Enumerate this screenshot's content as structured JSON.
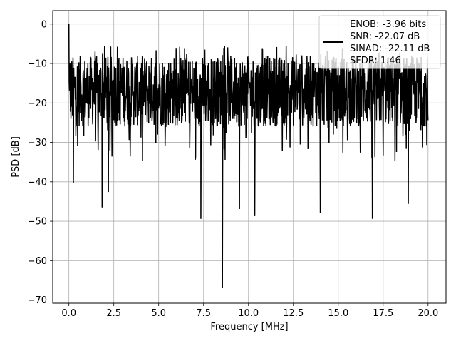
{
  "chart_data": {
    "type": "line",
    "title": "",
    "xlabel": "Frequency [MHz]",
    "ylabel": "PSD [dB]",
    "xlim": [
      -0.9,
      21.0
    ],
    "ylim": [
      -70.8,
      3.4
    ],
    "xticks": [
      0.0,
      2.5,
      5.0,
      7.5,
      10.0,
      12.5,
      15.0,
      17.5,
      20.0
    ],
    "xtick_labels": [
      "0.0",
      "2.5",
      "5.0",
      "7.5",
      "10.0",
      "12.5",
      "15.0",
      "17.5",
      "20.0"
    ],
    "yticks": [
      0,
      -10,
      -20,
      -30,
      -40,
      -50,
      -60,
      -70
    ],
    "ytick_labels": [
      "0",
      "−10",
      "−20",
      "−30",
      "−40",
      "−50",
      "−60",
      "−70"
    ],
    "grid": true,
    "legend_position": "top-right",
    "legend_lines": [
      "ENOB: -3.96 bits",
      "SNR: -22.07 dB",
      "SINAD: -22.11 dB",
      "SFDR: 1.46"
    ],
    "series": [
      {
        "color": "#000000",
        "trace": {
          "x_range": [
            0.0,
            20.0
          ],
          "typical_band": [
            -26,
            -8
          ],
          "start_peak": 0.0,
          "notable_minima": [
            {
              "x": 0.25,
              "y": -40.3
            },
            {
              "x": 1.85,
              "y": -46.5
            },
            {
              "x": 2.2,
              "y": -42.6
            },
            {
              "x": 7.35,
              "y": -49.4
            },
            {
              "x": 8.55,
              "y": -67.0
            },
            {
              "x": 9.5,
              "y": -46.9
            },
            {
              "x": 10.35,
              "y": -48.7
            },
            {
              "x": 14.0,
              "y": -48.0
            },
            {
              "x": 16.9,
              "y": -49.4
            },
            {
              "x": 18.9,
              "y": -45.6
            }
          ]
        }
      }
    ]
  }
}
